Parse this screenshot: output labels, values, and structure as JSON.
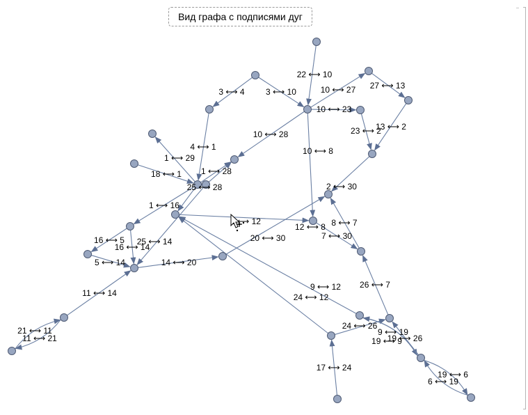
{
  "title": "Вид графа с подписями дуг",
  "colors": {
    "edge": "#6a7fa3",
    "node_fill": "#98a6c0",
    "node_stroke": "#4e5a73"
  },
  "cursor_icon": "mouse-pointer-icon",
  "graph": {
    "nodes": [
      "22",
      "10",
      "3",
      "4",
      "27",
      "13",
      "23",
      "2",
      "28",
      "29",
      "1",
      "18",
      "25",
      "16",
      "12",
      "5",
      "14",
      "20",
      "30",
      "8",
      "7",
      "26",
      "9",
      "24",
      "11",
      "21",
      "17",
      "19",
      "6"
    ],
    "edges": [
      {
        "from": "22",
        "to": "10",
        "label": "22 ⟷ 10"
      },
      {
        "from": "3",
        "to": "4",
        "label": "3 ⟷ 4"
      },
      {
        "from": "3",
        "to": "10",
        "label": "3 ⟷ 10"
      },
      {
        "from": "10",
        "to": "27",
        "label": "10 ⟷ 27"
      },
      {
        "from": "27",
        "to": "13",
        "label": "27 ⟷ 13"
      },
      {
        "from": "10",
        "to": "23",
        "label": "10 ⟷ 23"
      },
      {
        "from": "23",
        "to": "2",
        "label": "23 ⟷ 2"
      },
      {
        "from": "13",
        "to": "2",
        "label": "13 ⟷ 2"
      },
      {
        "from": "4",
        "to": "1",
        "label": "4 ⟷ 1"
      },
      {
        "from": "10",
        "to": "28",
        "label": "10 ⟷ 28"
      },
      {
        "from": "10",
        "to": "8",
        "label": "10 ⟷ 8"
      },
      {
        "from": "1",
        "to": "29",
        "label": "1 ⟷ 29"
      },
      {
        "from": "1",
        "to": "28",
        "label": "1 ⟷ 28"
      },
      {
        "from": "18",
        "to": "1",
        "label": "18 ⟷ 1"
      },
      {
        "from": "25",
        "to": "28",
        "label": "25 ⟷ 28"
      },
      {
        "from": "2",
        "to": "30",
        "label": "2 ⟷ 30"
      },
      {
        "from": "1",
        "to": "16",
        "label": "1 ⟷ 16"
      },
      {
        "from": "1",
        "to": "12",
        "label": "1 ⟷ 12"
      },
      {
        "from": "8",
        "to": "7",
        "label": "8 ⟷ 7"
      },
      {
        "from": "12",
        "to": "8",
        "label": "12 ⟷ 8"
      },
      {
        "from": "16",
        "to": "5",
        "label": "16 ⟷ 5"
      },
      {
        "from": "16",
        "to": "14",
        "label": "16 ⟷ 14"
      },
      {
        "from": "25",
        "to": "14",
        "label": "25 ⟷ 14"
      },
      {
        "from": "20",
        "to": "30",
        "label": "20 ⟷ 30"
      },
      {
        "from": "7",
        "to": "30",
        "label": "7 ⟷ 30"
      },
      {
        "from": "5",
        "to": "14",
        "label": "5 ⟷ 14"
      },
      {
        "from": "14",
        "to": "20",
        "label": "14 ⟷ 20"
      },
      {
        "from": "26",
        "to": "7",
        "label": "26 ⟷ 7"
      },
      {
        "from": "9",
        "to": "12",
        "label": "9 ⟷ 12"
      },
      {
        "from": "11",
        "to": "14",
        "label": "11 ⟷ 14"
      },
      {
        "from": "24",
        "to": "12",
        "label": "24 ⟷ 12"
      },
      {
        "from": "21",
        "to": "11",
        "label": "21 ⟷ 11"
      },
      {
        "from": "11",
        "to": "21",
        "label": "11 ⟷ 21"
      },
      {
        "from": "24",
        "to": "26",
        "label": "24 ⟷ 26"
      },
      {
        "from": "9",
        "to": "19",
        "label": "9 ⟷ 19"
      },
      {
        "from": "19",
        "to": "9",
        "label": "19 ⟷ 9"
      },
      {
        "from": "19",
        "to": "26",
        "label": "19 ⟷ 26"
      },
      {
        "from": "17",
        "to": "24",
        "label": "17 ⟷ 24"
      },
      {
        "from": "19",
        "to": "6",
        "label": "19 ⟷ 6"
      },
      {
        "from": "6",
        "to": "19",
        "label": "6 ⟷ 19"
      }
    ]
  }
}
